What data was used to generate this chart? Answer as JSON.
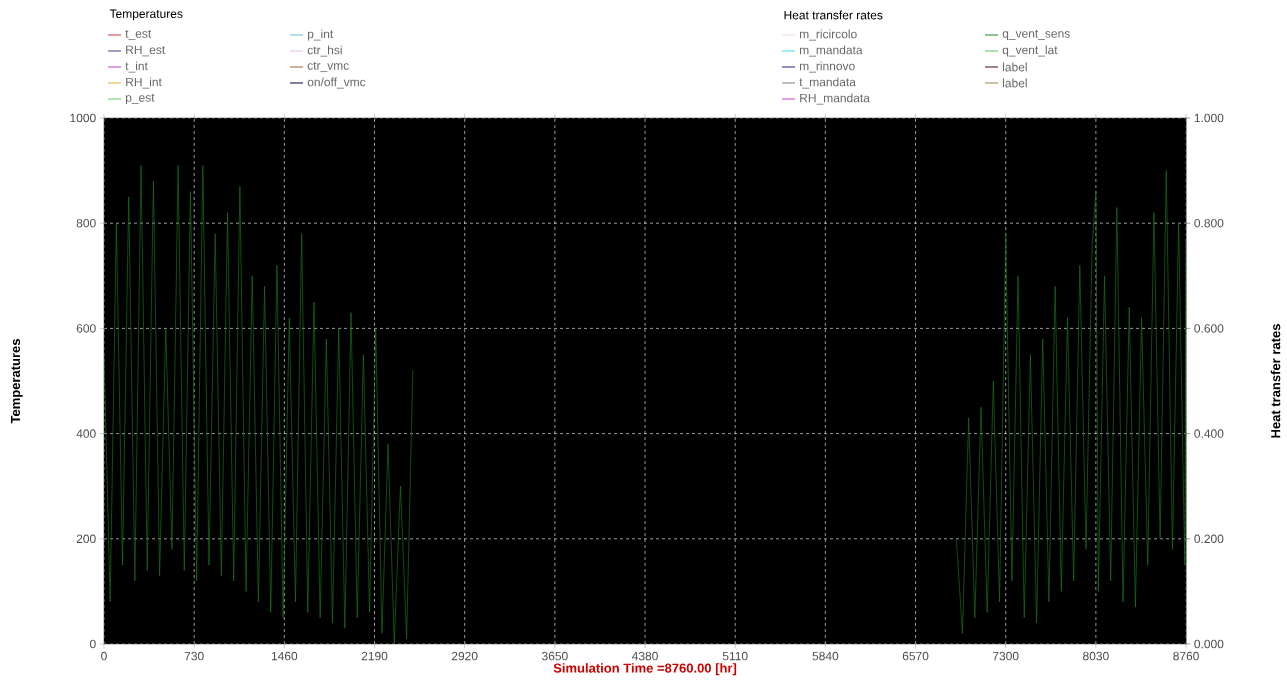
{
  "chart_data": {
    "type": "line",
    "xlabel": "Simulation Time =8760.00 [hr]",
    "ylabel": "Temperatures",
    "y2label": "Heat transfer rates",
    "xlim": [
      0,
      8760
    ],
    "xticks": [
      0,
      730,
      1460,
      2190,
      2920,
      3650,
      4380,
      5110,
      5840,
      6570,
      7300,
      8030,
      8760
    ],
    "ylim": [
      0,
      1000
    ],
    "yticks": [
      0,
      200,
      400,
      600,
      800,
      1000
    ],
    "y2lim": [
      0,
      1
    ],
    "y2ticks": [
      {
        "value": 0,
        "label": "0.000"
      },
      {
        "value": 0.2,
        "label": "0.200"
      },
      {
        "value": 0.4,
        "label": "0.400"
      },
      {
        "value": 0.6,
        "label": "0.600"
      },
      {
        "value": 0.8,
        "label": "0.800"
      },
      {
        "value": 1,
        "label": "1.000"
      }
    ],
    "grid": true,
    "legend": "top",
    "line_style": "solid",
    "series": [
      {
        "name": "t_est",
        "color": "#c04040",
        "axis": "y"
      },
      {
        "name": "RH_est",
        "color": "#404080",
        "axis": "y"
      },
      {
        "name": "t_int",
        "color": "#c040c0",
        "axis": "y"
      },
      {
        "name": "RH_int",
        "color": "#e0b040",
        "axis": "y"
      },
      {
        "name": "p_est",
        "color": "#60d060",
        "axis": "y"
      },
      {
        "name": "p_int",
        "color": "#60c0d0",
        "axis": "y"
      },
      {
        "name": "ctr_hsi",
        "color": "#e0c0e0",
        "axis": "y"
      },
      {
        "name": "ctr_vmc",
        "color": "#a06040",
        "axis": "y"
      },
      {
        "name": "on/off_vmc",
        "color": "#000040",
        "axis": "y"
      },
      {
        "name": "m_ricircolo",
        "color": "#f0e0d0",
        "axis": "y2"
      },
      {
        "name": "m_mandata",
        "color": "#40e0e0",
        "axis": "y2"
      },
      {
        "name": "m_rinnovo",
        "color": "#202080",
        "axis": "y2"
      },
      {
        "name": "t_mandata",
        "color": "#808080",
        "axis": "y2"
      },
      {
        "name": "RH_mandata",
        "color": "#d040d0",
        "axis": "y2"
      },
      {
        "name": "q_vent_sens",
        "color": "#208020",
        "axis": "y2",
        "x": [
          0,
          50,
          100,
          150,
          200,
          250,
          300,
          350,
          400,
          450,
          500,
          550,
          600,
          650,
          700,
          750,
          800,
          850,
          900,
          950,
          1000,
          1050,
          1100,
          1150,
          1200,
          1250,
          1300,
          1350,
          1400,
          1450,
          1500,
          1550,
          1600,
          1650,
          1700,
          1750,
          1800,
          1850,
          1900,
          1950,
          2000,
          2050,
          2100,
          2150,
          2200,
          2250,
          2300,
          2350,
          2400,
          2450,
          2500,
          2600,
          6900,
          6950,
          7000,
          7050,
          7100,
          7150,
          7200,
          7250,
          7300,
          7350,
          7400,
          7450,
          7500,
          7550,
          7600,
          7650,
          7700,
          7750,
          7800,
          7850,
          7900,
          7950,
          8000,
          8030,
          8050,
          8100,
          8150,
          8200,
          8250,
          8300,
          8350,
          8400,
          8450,
          8500,
          8550,
          8600,
          8650,
          8700,
          8750,
          8760
        ],
        "values": [
          0.55,
          0.08,
          0.8,
          0.15,
          0.85,
          0.12,
          0.91,
          0.14,
          0.88,
          0.13,
          0.6,
          0.18,
          0.91,
          0.14,
          0.86,
          0.12,
          0.91,
          0.15,
          0.78,
          0.13,
          0.82,
          0.12,
          0.87,
          0.1,
          0.7,
          0.08,
          0.68,
          0.06,
          0.72,
          0.05,
          0.62,
          0.08,
          0.78,
          0.06,
          0.65,
          0.05,
          0.58,
          0.04,
          0.6,
          0.03,
          0.63,
          0.05,
          0.55,
          0.06,
          0.6,
          0.02,
          0.38,
          0.0,
          0.3,
          0.01,
          0.52,
          null,
          0.2,
          0.02,
          0.43,
          0.05,
          0.45,
          0.06,
          0.5,
          0.08,
          0.78,
          0.12,
          0.7,
          0.05,
          0.55,
          0.04,
          0.58,
          0.08,
          0.68,
          0.1,
          0.62,
          0.12,
          0.72,
          0.18,
          0.76,
          0.86,
          0.1,
          0.7,
          0.12,
          0.83,
          0.08,
          0.64,
          0.07,
          0.62,
          0.15,
          0.82,
          0.2,
          0.9,
          0.18,
          0.8,
          0.15,
          0.77
        ]
      },
      {
        "name": "q_vent_lat",
        "color": "#60c060",
        "axis": "y2"
      },
      {
        "name": "label",
        "color": "#400020",
        "axis": "y2"
      },
      {
        "name": "label",
        "color": "#a08040",
        "axis": "y2"
      }
    ]
  }
}
